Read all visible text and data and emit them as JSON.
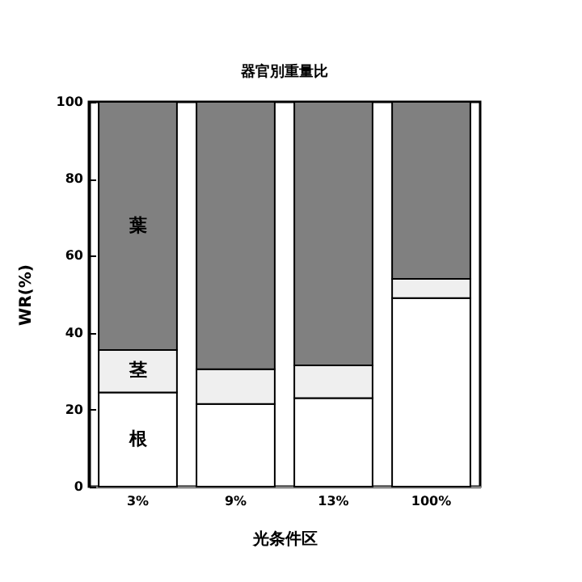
{
  "chart_data": {
    "type": "bar",
    "title": "器官別重量比",
    "xlabel": "光条件区",
    "ylabel": "WR(%)",
    "categories": [
      "3%",
      "9%",
      "13%",
      "100%"
    ],
    "stacked": true,
    "series": [
      {
        "name": "根",
        "color": "#ffffff",
        "values": [
          24.5,
          21.5,
          23,
          49
        ]
      },
      {
        "name": "茎",
        "color": "#efefef",
        "values": [
          11,
          9,
          8.5,
          5
        ]
      },
      {
        "name": "葉",
        "color": "#808080",
        "values": [
          64.5,
          69.5,
          68.5,
          46
        ]
      }
    ],
    "ylim": [
      0,
      100
    ],
    "yticks": [
      0,
      20,
      40,
      60,
      80,
      100
    ],
    "grid": false,
    "legend": false
  }
}
